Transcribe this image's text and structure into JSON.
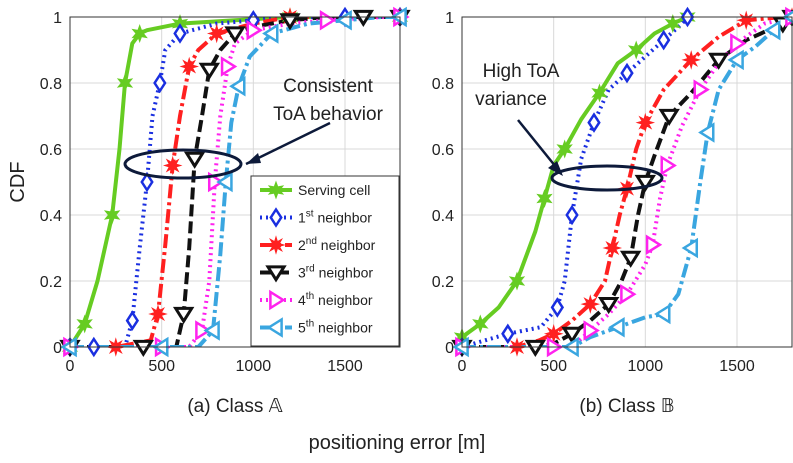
{
  "figure": {
    "ylabel": "CDF",
    "xlabel": "positioning error [m]"
  },
  "legend": [
    {
      "label": "Serving cell",
      "sup": "",
      "color": "#66cc22",
      "dash": "",
      "marker": "star6"
    },
    {
      "label": "1",
      "sup": "st",
      "suffix": " neighbor",
      "color": "#1a2fe0",
      "dash": "2,4",
      "marker": "diamond"
    },
    {
      "label": "2",
      "sup": "nd",
      "suffix": " neighbor",
      "color": "#ff2020",
      "dash": "14,4,3,4",
      "marker": "star8"
    },
    {
      "label": "3",
      "sup": "rd",
      "suffix": " neighbor",
      "color": "#111111",
      "dash": "12,5",
      "marker": "tri-down"
    },
    {
      "label": "4",
      "sup": "th",
      "suffix": " neighbor",
      "color": "#ff22ee",
      "dash": "2,4",
      "marker": "tri-right"
    },
    {
      "label": "5",
      "sup": "th",
      "suffix": " neighbor",
      "color": "#3aa6e0",
      "dash": "14,4,3,4",
      "marker": "tri-left"
    }
  ],
  "annotations": {
    "a": "Consistent ToA behavior",
    "a_line1": "Consistent",
    "a_line2": "ToA behavior",
    "b_line1": "High ToA",
    "b_line2": "variance"
  },
  "chart_data": [
    {
      "type": "line",
      "title": "(a) Class 𝔸",
      "xlabel": "positioning error [m]",
      "ylabel": "CDF",
      "xlim": [
        0,
        1800
      ],
      "ylim": [
        0,
        1
      ],
      "xticks": [
        "0",
        "500",
        "1000",
        "1500"
      ],
      "yticks": [
        "0",
        "0.2",
        "0.4",
        "0.6",
        "0.8",
        "1"
      ],
      "grid": true,
      "legend_position": "bottom-right",
      "series": [
        {
          "name": "Serving cell",
          "x": [
            0,
            80,
            150,
            230,
            270,
            300,
            340,
            380,
            420,
            600,
            900,
            1200,
            1500,
            1800
          ],
          "y": [
            0,
            0.07,
            0.2,
            0.4,
            0.6,
            0.8,
            0.92,
            0.95,
            0.96,
            0.98,
            0.99,
            1.0,
            1.0,
            1.0
          ]
        },
        {
          "name": "1st neighbor",
          "x": [
            0,
            130,
            300,
            340,
            380,
            420,
            450,
            490,
            520,
            600,
            800,
            1000,
            1200,
            1500,
            1800
          ],
          "y": [
            0,
            0,
            0,
            0.08,
            0.3,
            0.5,
            0.7,
            0.8,
            0.9,
            0.95,
            0.98,
            0.99,
            1.0,
            1.0,
            1.0
          ]
        },
        {
          "name": "2nd neighbor",
          "x": [
            0,
            250,
            440,
            480,
            520,
            560,
            600,
            650,
            700,
            800,
            1000,
            1200,
            1500,
            1800
          ],
          "y": [
            0,
            0,
            0.02,
            0.1,
            0.31,
            0.55,
            0.7,
            0.85,
            0.9,
            0.95,
            0.98,
            1.0,
            1.0,
            1.0
          ]
        },
        {
          "name": "3rd neighbor",
          "x": [
            0,
            400,
            580,
            620,
            650,
            680,
            720,
            760,
            820,
            900,
            1000,
            1200,
            1400,
            1600,
            1800
          ],
          "y": [
            0,
            0,
            0,
            0.1,
            0.3,
            0.57,
            0.7,
            0.84,
            0.9,
            0.95,
            0.97,
            0.99,
            1.0,
            1.0,
            1.0
          ]
        },
        {
          "name": "4th neighbor",
          "x": [
            0,
            500,
            650,
            720,
            760,
            790,
            820,
            860,
            900,
            1000,
            1200,
            1400,
            1700,
            1800
          ],
          "y": [
            0,
            0,
            0,
            0.05,
            0.2,
            0.5,
            0.7,
            0.85,
            0.92,
            0.96,
            0.98,
            0.99,
            1.0,
            1.0
          ]
        },
        {
          "name": "5th neighbor",
          "x": [
            0,
            500,
            700,
            780,
            820,
            850,
            880,
            920,
            980,
            1100,
            1300,
            1500,
            1700,
            1800
          ],
          "y": [
            0,
            0,
            0,
            0.05,
            0.28,
            0.5,
            0.68,
            0.79,
            0.88,
            0.95,
            0.98,
            0.99,
            1.0,
            1.0
          ]
        }
      ]
    },
    {
      "type": "line",
      "title": "(b) Class 𝔹",
      "xlabel": "positioning error [m]",
      "ylabel": "",
      "xlim": [
        0,
        1800
      ],
      "ylim": [
        0,
        1
      ],
      "xticks": [
        "0",
        "500",
        "1000",
        "1500"
      ],
      "yticks": [
        "0",
        "0.2",
        "0.4",
        "0.6",
        "0.8",
        "1"
      ],
      "grid": true,
      "series": [
        {
          "name": "Serving cell",
          "x": [
            0,
            100,
            200,
            300,
            400,
            450,
            500,
            560,
            650,
            750,
            850,
            950,
            1050,
            1150,
            1230
          ],
          "y": [
            0.03,
            0.07,
            0.12,
            0.2,
            0.35,
            0.45,
            0.55,
            0.6,
            0.69,
            0.77,
            0.86,
            0.9,
            0.95,
            0.98,
            1.0
          ]
        },
        {
          "name": "1st neighbor",
          "x": [
            0,
            250,
            430,
            520,
            560,
            600,
            650,
            720,
            800,
            900,
            1000,
            1100,
            1200,
            1230
          ],
          "y": [
            0,
            0.04,
            0.06,
            0.12,
            0.2,
            0.4,
            0.57,
            0.68,
            0.78,
            0.83,
            0.88,
            0.93,
            0.98,
            1.0
          ]
        },
        {
          "name": "2nd neighbor",
          "x": [
            0,
            300,
            420,
            500,
            600,
            700,
            780,
            820,
            860,
            900,
            950,
            1000,
            1100,
            1250,
            1400,
            1550,
            1750,
            1800
          ],
          "y": [
            0,
            0,
            0.02,
            0.04,
            0.08,
            0.13,
            0.2,
            0.3,
            0.4,
            0.48,
            0.6,
            0.68,
            0.78,
            0.87,
            0.94,
            0.99,
            1.0,
            1.0
          ]
        },
        {
          "name": "3rd neighbor",
          "x": [
            0,
            400,
            500,
            600,
            700,
            800,
            870,
            920,
            960,
            1000,
            1050,
            1130,
            1250,
            1400,
            1550,
            1750,
            1800
          ],
          "y": [
            0,
            0,
            0.01,
            0.04,
            0.08,
            0.13,
            0.2,
            0.27,
            0.4,
            0.5,
            0.58,
            0.7,
            0.77,
            0.87,
            0.93,
            0.98,
            1.0
          ]
        },
        {
          "name": "4th neighbor",
          "x": [
            0,
            500,
            600,
            700,
            800,
            900,
            1000,
            1040,
            1080,
            1120,
            1200,
            1300,
            1400,
            1500,
            1650,
            1800
          ],
          "y": [
            0,
            0,
            0,
            0.05,
            0.1,
            0.16,
            0.25,
            0.31,
            0.45,
            0.55,
            0.67,
            0.78,
            0.86,
            0.92,
            0.98,
            1.0
          ]
        },
        {
          "name": "5th neighbor",
          "x": [
            0,
            600,
            700,
            850,
            1000,
            1100,
            1180,
            1250,
            1300,
            1340,
            1400,
            1500,
            1600,
            1700,
            1800
          ],
          "y": [
            0,
            0,
            0.03,
            0.06,
            0.09,
            0.1,
            0.16,
            0.3,
            0.5,
            0.65,
            0.78,
            0.87,
            0.91,
            0.96,
            1.0
          ]
        }
      ]
    }
  ]
}
